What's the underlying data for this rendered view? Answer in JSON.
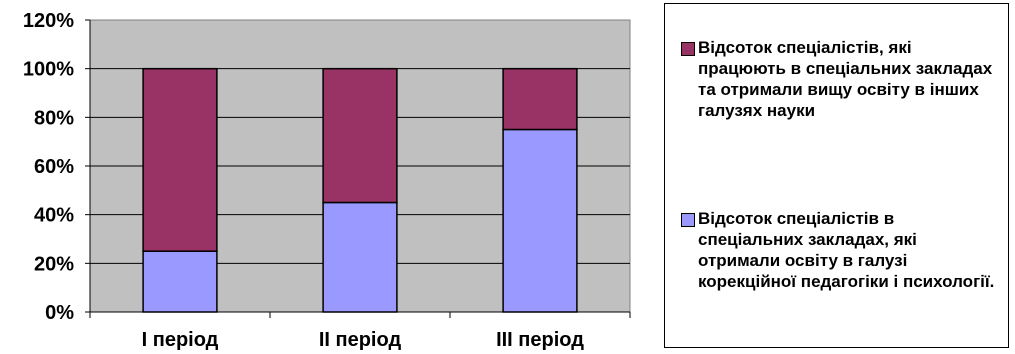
{
  "chart_data": {
    "type": "bar",
    "stacked": true,
    "categories": [
      "I період",
      "II період",
      "III період"
    ],
    "series": [
      {
        "name": "Відсоток спеціалістів в спеціальних закладах, які отримали освіту в галузі корекційної педагогіки і психології.",
        "values": [
          25,
          45,
          75
        ],
        "color": "#9999ff"
      },
      {
        "name": "Відсоток спеціалістів, які працюють в спеціальних закладах та отримали вищу освіту в інших галузях науки",
        "values": [
          75,
          55,
          25
        ],
        "color": "#993366"
      }
    ],
    "yticks": [
      "0%",
      "20%",
      "40%",
      "60%",
      "80%",
      "100%",
      "120%"
    ],
    "ylim": [
      0,
      120
    ],
    "plot_background": "#c0c0c0",
    "grid": true,
    "legend_position": "right",
    "title": "",
    "xlabel": "",
    "ylabel": ""
  }
}
